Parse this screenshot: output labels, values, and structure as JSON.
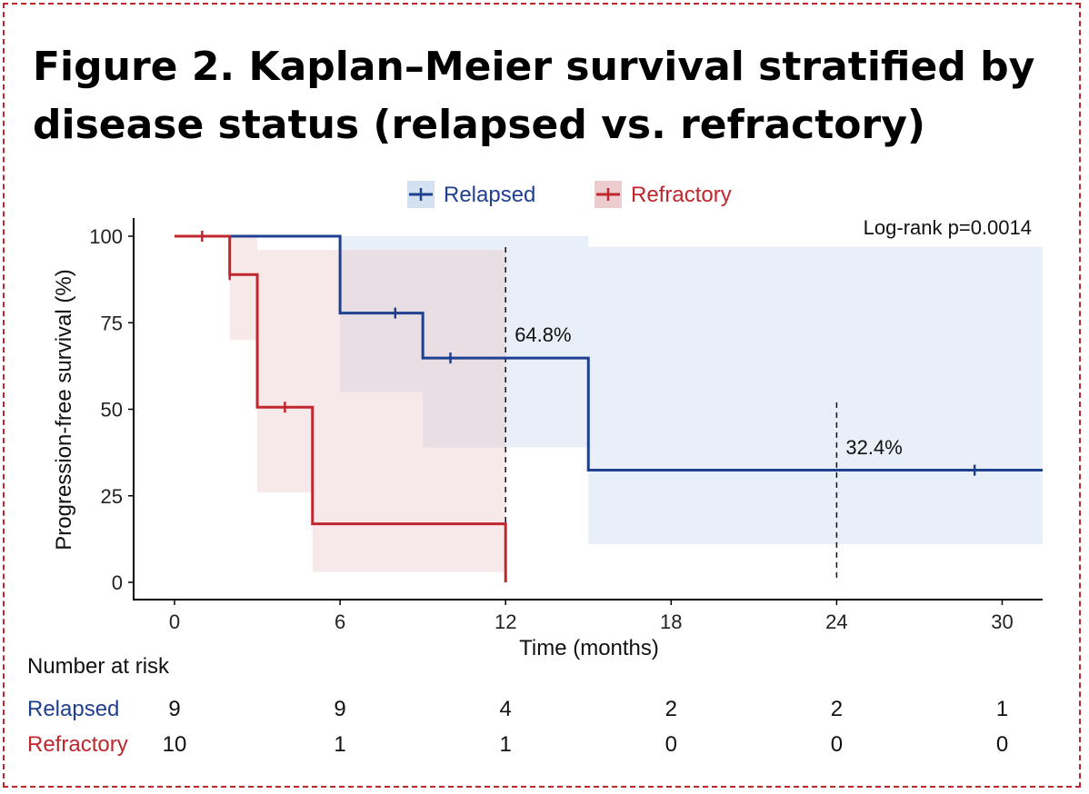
{
  "title": "Figure 2. Kaplan–Meier survival stratified by disease status (relapsed vs. refractory)",
  "chart_data": {
    "type": "kaplan-meier",
    "xlabel": "Time (months)",
    "ylabel": "Progression-free survival (%)",
    "xlim": [
      -2.4,
      31.5
    ],
    "ylim": [
      -5,
      105
    ],
    "xticks": [
      0,
      6,
      12,
      18,
      24,
      30
    ],
    "yticks": [
      0,
      25,
      50,
      75,
      100
    ],
    "grid": false,
    "legend_position": "top",
    "annotation": "Log-rank p=0.0014",
    "reference_lines": [
      {
        "x": 12,
        "label": "64.8%",
        "label_y": 69.5
      },
      {
        "x": 24,
        "label": "32.4%",
        "label_y": 37.0
      }
    ],
    "series": [
      {
        "name": "Relapsed",
        "color": "#1f3f8f",
        "band_color": "#c9d9ee",
        "steps": [
          [
            0,
            100
          ],
          [
            6,
            77.8
          ],
          [
            9,
            64.8
          ],
          [
            15,
            32.4
          ],
          [
            31.5,
            32.4
          ]
        ],
        "ci": [
          [
            0,
            100,
            100
          ],
          [
            2.5,
            100,
            96
          ],
          [
            6,
            55,
            100
          ],
          [
            9,
            39,
            100
          ],
          [
            15,
            11,
            97
          ]
        ],
        "censored": [
          [
            8,
            77.8
          ],
          [
            10,
            64.8
          ],
          [
            29,
            32.4
          ]
        ]
      },
      {
        "name": "Refractory",
        "color": "#c0262d",
        "band_color": "#e8bfc3",
        "steps": [
          [
            0,
            100
          ],
          [
            2,
            88.9
          ],
          [
            3,
            50.6
          ],
          [
            5,
            16.9
          ],
          [
            12,
            16.9
          ],
          [
            12,
            0
          ]
        ],
        "ci": [
          [
            2,
            70,
            100
          ],
          [
            3,
            26,
            96
          ],
          [
            5,
            3,
            96
          ]
        ],
        "ci_end": 12,
        "censored": [
          [
            1,
            100
          ],
          [
            2,
            88.9
          ],
          [
            4,
            50.6
          ]
        ]
      }
    ],
    "risk_table": {
      "title": "Number at risk",
      "times": [
        0,
        6,
        12,
        18,
        24,
        30
      ],
      "rows": [
        {
          "name": "Relapsed",
          "values": [
            9,
            9,
            4,
            2,
            2,
            1
          ]
        },
        {
          "name": "Refractory",
          "values": [
            10,
            1,
            1,
            0,
            0,
            0
          ]
        }
      ]
    }
  }
}
